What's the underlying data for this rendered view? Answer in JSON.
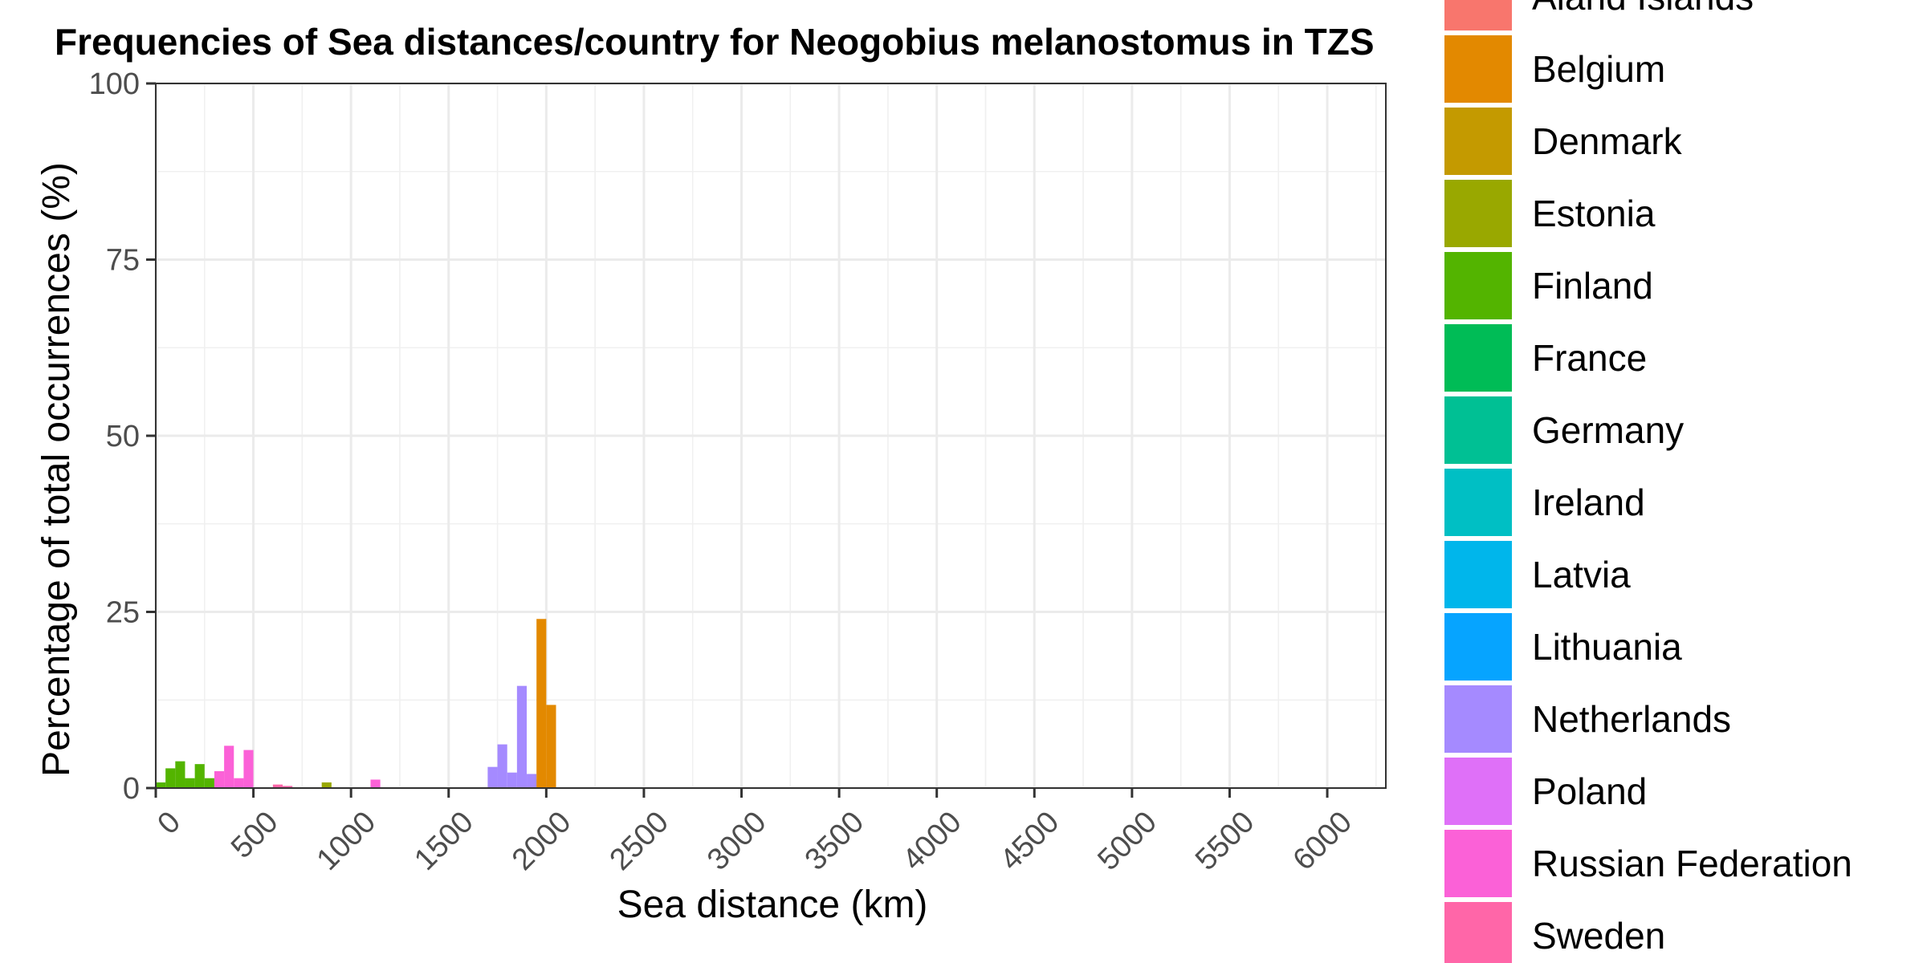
{
  "chart_data": {
    "type": "bar",
    "title": "Frequencies of Sea distances/country for Neogobius melanostomus in TZS",
    "xlabel": "Sea distance (km)",
    "ylabel": "Percentage of total occurrences (%)",
    "xlim": [
      0,
      6300
    ],
    "ylim": [
      0,
      100
    ],
    "x_ticks": [
      "0",
      "500",
      "1000",
      "1500",
      "2000",
      "2500",
      "3000",
      "3500",
      "4000",
      "4500",
      "5000",
      "5500",
      "6000"
    ],
    "y_ticks": [
      "0",
      "25",
      "50",
      "75",
      "100"
    ],
    "grid": true,
    "legend_position": "right",
    "bin_width": 50,
    "legend": [
      {
        "name": "Åland Islands",
        "color": "#F8766D"
      },
      {
        "name": "Belgium",
        "color": "#E38900"
      },
      {
        "name": "Denmark",
        "color": "#C49A00"
      },
      {
        "name": "Estonia",
        "color": "#99A800"
      },
      {
        "name": "Finland",
        "color": "#53B400"
      },
      {
        "name": "France",
        "color": "#00BC56"
      },
      {
        "name": "Germany",
        "color": "#00C094"
      },
      {
        "name": "Ireland",
        "color": "#00BFC4"
      },
      {
        "name": "Latvia",
        "color": "#00B6EB"
      },
      {
        "name": "Lithuania",
        "color": "#06A4FF"
      },
      {
        "name": "Netherlands",
        "color": "#A58AFF"
      },
      {
        "name": "Poland",
        "color": "#DF70F8"
      },
      {
        "name": "Russian Federation",
        "color": "#FB61D7"
      },
      {
        "name": "Sweden",
        "color": "#FF66A8"
      }
    ],
    "series": [
      {
        "name": "Finland",
        "bars": [
          {
            "x": 0,
            "y": 0.8
          },
          {
            "x": 50,
            "y": 2.8
          },
          {
            "x": 100,
            "y": 3.8
          },
          {
            "x": 150,
            "y": 1.4
          },
          {
            "x": 200,
            "y": 3.4
          },
          {
            "x": 250,
            "y": 1.4
          }
        ]
      },
      {
        "name": "Russian Federation",
        "bars": [
          {
            "x": 300,
            "y": 2.4
          },
          {
            "x": 350,
            "y": 6.0
          },
          {
            "x": 400,
            "y": 1.4
          },
          {
            "x": 450,
            "y": 5.4
          },
          {
            "x": 1100,
            "y": 1.2
          }
        ]
      },
      {
        "name": "Sweden",
        "bars": [
          {
            "x": 600,
            "y": 0.5
          },
          {
            "x": 650,
            "y": 0.3
          }
        ]
      },
      {
        "name": "Estonia",
        "bars": [
          {
            "x": 850,
            "y": 0.8
          }
        ]
      },
      {
        "name": "Netherlands",
        "bars": [
          {
            "x": 1700,
            "y": 3.0
          },
          {
            "x": 1750,
            "y": 6.2
          },
          {
            "x": 1800,
            "y": 2.2
          },
          {
            "x": 1850,
            "y": 14.5
          },
          {
            "x": 1900,
            "y": 2.0
          },
          {
            "x": 1950,
            "y": 1.2
          }
        ]
      },
      {
        "name": "Belgium",
        "bars": [
          {
            "x": 1950,
            "y": 24.0
          },
          {
            "x": 2000,
            "y": 11.8
          }
        ]
      }
    ]
  }
}
